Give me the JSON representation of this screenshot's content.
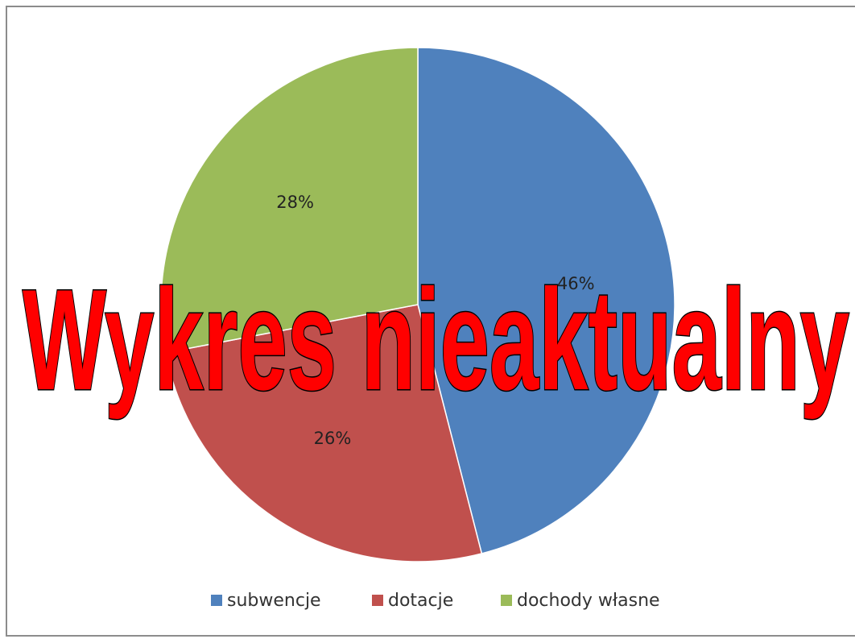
{
  "chart_data": {
    "type": "pie",
    "categories": [
      "subwencje",
      "dotacje",
      "dochody własne"
    ],
    "values": [
      46,
      26,
      28
    ],
    "value_labels": [
      "46%",
      "26%",
      "28%"
    ],
    "colors": [
      "#4f81bd",
      "#c0504d",
      "#9bbb59"
    ],
    "legend": "bottom",
    "annotation": "Wykres nieaktualny"
  }
}
